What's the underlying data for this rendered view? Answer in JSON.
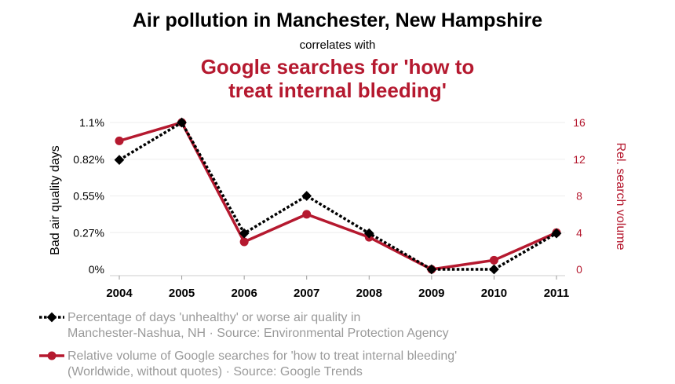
{
  "colors": {
    "series_black": "#000000",
    "series_red": "#b5192f",
    "legend_text": "#9a9a9a",
    "grid": "#eeeeee"
  },
  "chart_data": {
    "type": "line",
    "title": "Air pollution in Manchester, New Hampshire",
    "subtitle": "correlates with",
    "headline_line1": "Google searches for 'how to",
    "headline_line2": "treat internal bleeding'",
    "x": [
      "2004",
      "2005",
      "2006",
      "2007",
      "2008",
      "2009",
      "2010",
      "2011"
    ],
    "y_left": {
      "label": "Bad air quality days",
      "ticks": [
        "0%",
        "0.27%",
        "0.55%",
        "0.82%",
        "1.1%"
      ],
      "range": [
        0,
        1.1
      ]
    },
    "y_right": {
      "label": "Rel. search volume",
      "ticks": [
        "0",
        "4",
        "8",
        "12",
        "16"
      ],
      "range": [
        0,
        16
      ]
    },
    "series": [
      {
        "axis": "left",
        "marker": "diamond",
        "style": "dotted",
        "color": "#000000",
        "values": [
          0.82,
          1.1,
          0.27,
          0.55,
          0.27,
          0,
          0,
          0.27
        ],
        "legend_line1": "Percentage of days 'unhealthy' or worse air quality in",
        "legend_line2": "Manchester-Nashua, NH · Source: Environmental Protection Agency"
      },
      {
        "axis": "right",
        "marker": "circle",
        "style": "solid",
        "color": "#b5192f",
        "values": [
          14,
          16,
          3,
          6,
          3.5,
          0,
          1,
          4
        ],
        "legend_line1": "Relative volume of Google searches for 'how to treat internal bleeding'",
        "legend_line2": "(Worldwide, without quotes) · Source: Google Trends"
      }
    ],
    "grid": true,
    "legend_position": "bottom-left"
  }
}
